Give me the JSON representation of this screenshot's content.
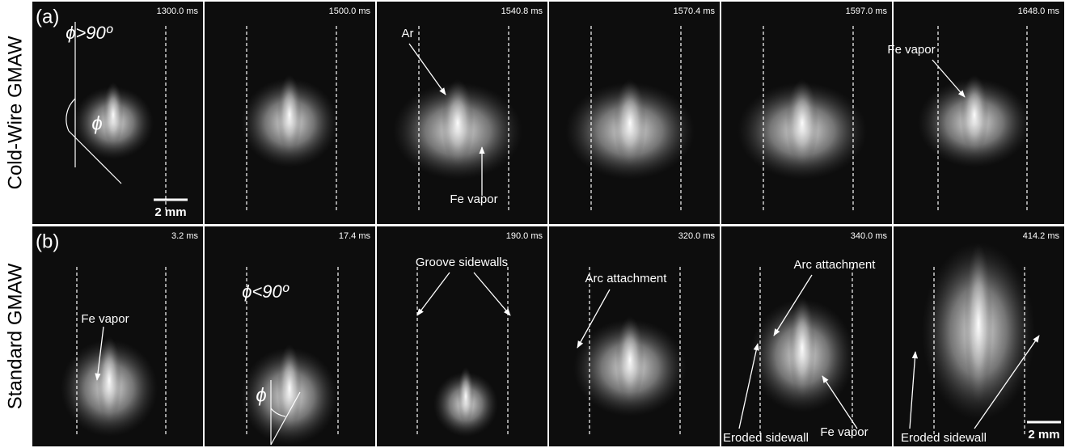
{
  "rows": [
    {
      "label": "Cold-Wire GMAW",
      "panel_letter": "(a)",
      "scale_bar": "2 mm",
      "panels": [
        {
          "time": "1300.0 ms",
          "annotations": [
            "ϕ>90º",
            "ϕ"
          ]
        },
        {
          "time": "1500.0 ms",
          "annotations": []
        },
        {
          "time": "1540.8 ms",
          "annotations": [
            "Ar",
            "Fe vapor"
          ]
        },
        {
          "time": "1570.4 ms",
          "annotations": []
        },
        {
          "time": "1597.0 ms",
          "annotations": []
        },
        {
          "time": "1648.0 ms",
          "annotations": [
            "Fe vapor"
          ]
        }
      ]
    },
    {
      "label": "Standard GMAW",
      "panel_letter": "(b)",
      "scale_bar": "2 mm",
      "panels": [
        {
          "time": "3.2 ms",
          "annotations": [
            "Fe vapor"
          ]
        },
        {
          "time": "17.4 ms",
          "annotations": [
            "ϕ<90º",
            "ϕ"
          ]
        },
        {
          "time": "190.0 ms",
          "annotations": [
            "Groove sidewalls"
          ]
        },
        {
          "time": "320.0 ms",
          "annotations": [
            "Arc attachment"
          ]
        },
        {
          "time": "340.0 ms",
          "annotations": [
            "Arc attachment",
            "Fe vapor",
            "Eroded sidewall"
          ]
        },
        {
          "time": "414.2 ms",
          "annotations": [
            "Eroded sidewall"
          ]
        }
      ]
    }
  ]
}
